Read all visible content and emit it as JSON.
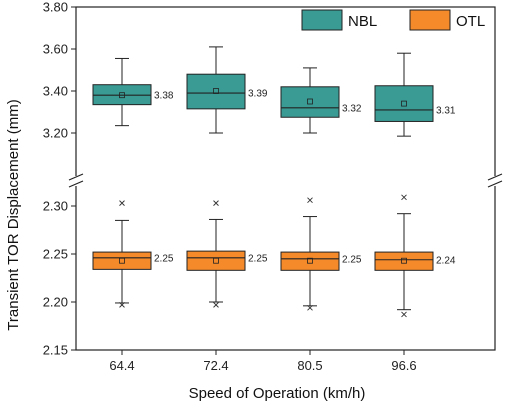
{
  "chart_data": {
    "type": "box",
    "xlabel": "Speed of Operation (km/h)",
    "ylabel": "Transient TOR Displacement (mm)",
    "categories": [
      "64.4",
      "72.4",
      "80.5",
      "96.6"
    ],
    "upper_panel": {
      "ylim": [
        3.2,
        3.8
      ],
      "yticks": [
        "3.20",
        "3.40",
        "3.60",
        "3.80"
      ]
    },
    "lower_panel": {
      "ylim": [
        2.15,
        2.3
      ],
      "yticks": [
        "2.15",
        "2.20",
        "2.25",
        "2.30"
      ]
    },
    "series": [
      {
        "name": "NBL",
        "color": "#3a9b95",
        "boxes": [
          {
            "whisker_low": 3.235,
            "q1": 3.335,
            "median": 3.38,
            "mean": 3.38,
            "q3": 3.43,
            "whisker_high": 3.555,
            "label": "3.38"
          },
          {
            "whisker_low": 3.2,
            "q1": 3.315,
            "median": 3.39,
            "mean": 3.4,
            "q3": 3.48,
            "whisker_high": 3.61,
            "label": "3.39"
          },
          {
            "whisker_low": 3.2,
            "q1": 3.275,
            "median": 3.32,
            "mean": 3.35,
            "q3": 3.42,
            "whisker_high": 3.51,
            "label": "3.32"
          },
          {
            "whisker_low": 3.185,
            "q1": 3.255,
            "median": 3.31,
            "mean": 3.34,
            "q3": 3.425,
            "whisker_high": 3.58,
            "label": "3.31"
          }
        ]
      },
      {
        "name": "OTL",
        "color": "#f58a2b",
        "boxes": [
          {
            "whisker_low": 2.199,
            "q1": 2.234,
            "median": 2.246,
            "mean": 2.243,
            "q3": 2.252,
            "whisker_high": 2.285,
            "outliers": [
              2.303,
              2.197
            ],
            "label": "2.25"
          },
          {
            "whisker_low": 2.2,
            "q1": 2.233,
            "median": 2.246,
            "mean": 2.243,
            "q3": 2.253,
            "whisker_high": 2.286,
            "outliers": [
              2.303,
              2.197
            ],
            "label": "2.25"
          },
          {
            "whisker_low": 2.196,
            "q1": 2.233,
            "median": 2.245,
            "mean": 2.243,
            "q3": 2.252,
            "whisker_high": 2.289,
            "outliers": [
              2.306,
              2.194
            ],
            "label": "2.25"
          },
          {
            "whisker_low": 2.192,
            "q1": 2.233,
            "median": 2.244,
            "mean": 2.243,
            "q3": 2.252,
            "whisker_high": 2.292,
            "outliers": [
              2.309,
              2.187
            ],
            "label": "2.24"
          }
        ]
      }
    ],
    "legend": {
      "placement": "top-right",
      "entries": [
        "NBL",
        "OTL"
      ]
    }
  }
}
